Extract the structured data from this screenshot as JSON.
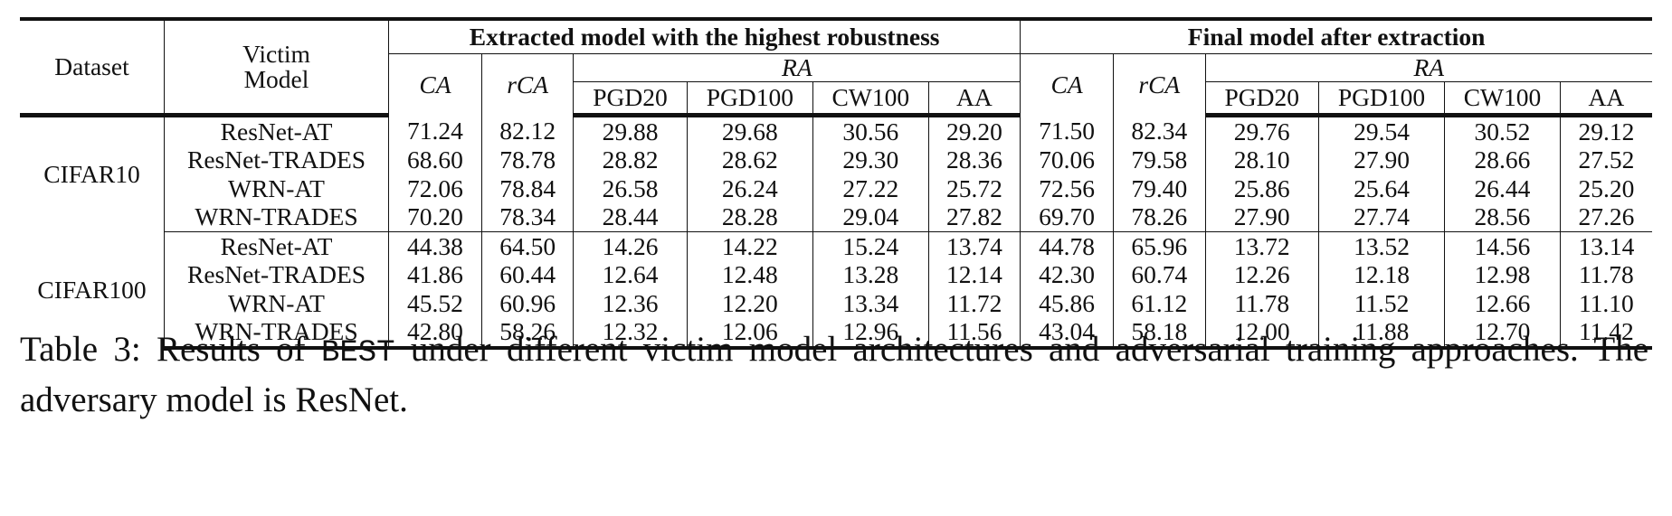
{
  "table": {
    "header": {
      "dataset": "Dataset",
      "victim_line1": "Victim",
      "victim_line2": "Model",
      "group1": "Extracted model with the highest robustness",
      "group2": "Final model after extraction",
      "ca": "CA",
      "rca": "rCA",
      "ra": "RA",
      "attacks": [
        "PGD20",
        "PGD100",
        "CW100",
        "AA"
      ]
    },
    "groups": [
      {
        "dataset": "CIFAR10",
        "rows": [
          {
            "model": "ResNet-AT",
            "values": [
              "71.24",
              "82.12",
              "29.88",
              "29.68",
              "30.56",
              "29.20",
              "71.50",
              "82.34",
              "29.76",
              "29.54",
              "30.52",
              "29.12"
            ]
          },
          {
            "model": "ResNet-TRADES",
            "values": [
              "68.60",
              "78.78",
              "28.82",
              "28.62",
              "29.30",
              "28.36",
              "70.06",
              "79.58",
              "28.10",
              "27.90",
              "28.66",
              "27.52"
            ]
          },
          {
            "model": "WRN-AT",
            "values": [
              "72.06",
              "78.84",
              "26.58",
              "26.24",
              "27.22",
              "25.72",
              "72.56",
              "79.40",
              "25.86",
              "25.64",
              "26.44",
              "25.20"
            ]
          },
          {
            "model": "WRN-TRADES",
            "values": [
              "70.20",
              "78.34",
              "28.44",
              "28.28",
              "29.04",
              "27.82",
              "69.70",
              "78.26",
              "27.90",
              "27.74",
              "28.56",
              "27.26"
            ]
          }
        ]
      },
      {
        "dataset": "CIFAR100",
        "rows": [
          {
            "model": "ResNet-AT",
            "values": [
              "44.38",
              "64.50",
              "14.26",
              "14.22",
              "15.24",
              "13.74",
              "44.78",
              "65.96",
              "13.72",
              "13.52",
              "14.56",
              "13.14"
            ]
          },
          {
            "model": "ResNet-TRADES",
            "values": [
              "41.86",
              "60.44",
              "12.64",
              "12.48",
              "13.28",
              "12.14",
              "42.30",
              "60.74",
              "12.26",
              "12.18",
              "12.98",
              "11.78"
            ]
          },
          {
            "model": "WRN-AT",
            "values": [
              "45.52",
              "60.96",
              "12.36",
              "12.20",
              "13.34",
              "11.72",
              "45.86",
              "61.12",
              "11.78",
              "11.52",
              "12.66",
              "11.10"
            ]
          },
          {
            "model": "WRN-TRADES",
            "values": [
              "42.80",
              "58.26",
              "12.32",
              "12.06",
              "12.96",
              "11.56",
              "43.04",
              "58.18",
              "12.00",
              "11.88",
              "12.70",
              "11.42"
            ]
          }
        ]
      }
    ]
  },
  "caption": {
    "prefix": "Table 3: Results of ",
    "method": "BEST",
    "suffix": " under different victim model architectures and adversarial training approaches. The adversary model is ResNet."
  }
}
